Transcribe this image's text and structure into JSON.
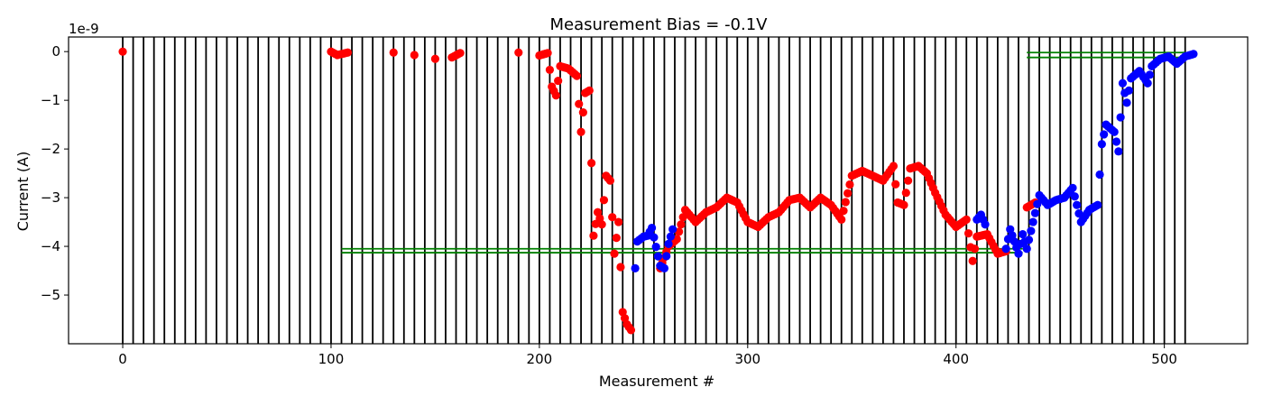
{
  "chart_data": {
    "type": "scatter",
    "title": "Measurement Bias = -0.1V",
    "xlabel": "Measurement #",
    "ylabel": "Current (A)",
    "y_offset_text": "1e-9",
    "y_scale": 1e-09,
    "xlim": [
      -26,
      540
    ],
    "ylim": [
      -6.0,
      0.3
    ],
    "xticks": [
      0,
      100,
      200,
      300,
      400,
      500
    ],
    "yticks": [
      0,
      -1,
      -2,
      -3,
      -4,
      -5
    ],
    "ytick_labels": [
      "0",
      "−1",
      "−2",
      "−3",
      "−4",
      "−5"
    ],
    "grid": false,
    "colors": {
      "red": "#ff0000",
      "blue": "#0000ff",
      "green": "#008000",
      "lines": "#000000"
    },
    "vertical_lines": {
      "start": 0,
      "step": 5,
      "count": 103,
      "y_top": 0.3,
      "y_bottom": -6.0
    },
    "horizontal_segments": [
      {
        "x": [
          105,
          432
        ],
        "y": -4.05
      },
      {
        "x": [
          105,
          432
        ],
        "y": -4.13
      },
      {
        "x": [
          434,
          510
        ],
        "y": -0.02
      },
      {
        "x": [
          434,
          510
        ],
        "y": -0.12
      }
    ],
    "series": [
      {
        "color": "red",
        "anchors": [
          [
            0,
            0
          ],
          [
            100,
            0
          ],
          [
            103,
            -0.07
          ],
          [
            108,
            -0.02
          ],
          [
            130,
            -0.02
          ],
          [
            140,
            -0.07
          ],
          [
            150,
            -0.15
          ],
          [
            158,
            -0.12
          ],
          [
            162,
            -0.03
          ],
          [
            190,
            -0.02
          ],
          [
            200,
            -0.08
          ],
          [
            204,
            -0.03
          ],
          [
            206,
            -0.72
          ],
          [
            208,
            -0.9
          ],
          [
            210,
            -0.3
          ],
          [
            214,
            -0.35
          ],
          [
            218,
            -0.5
          ],
          [
            220,
            -1.65
          ],
          [
            222,
            -0.85
          ],
          [
            224,
            -0.8
          ],
          [
            226,
            -3.78
          ],
          [
            228,
            -3.3
          ],
          [
            230,
            -3.55
          ],
          [
            232,
            -2.55
          ],
          [
            234,
            -2.65
          ],
          [
            236,
            -4.15
          ],
          [
            238,
            -3.5
          ],
          [
            240,
            -5.35
          ],
          [
            242,
            -5.6
          ],
          [
            244,
            -5.72
          ],
          [
            258,
            -4.45
          ],
          [
            262,
            -4.0
          ],
          [
            266,
            -3.85
          ],
          [
            270,
            -3.25
          ],
          [
            275,
            -3.5
          ],
          [
            280,
            -3.3
          ],
          [
            285,
            -3.2
          ],
          [
            290,
            -3.0
          ],
          [
            295,
            -3.1
          ],
          [
            300,
            -3.5
          ],
          [
            305,
            -3.6
          ],
          [
            310,
            -3.4
          ],
          [
            315,
            -3.3
          ],
          [
            320,
            -3.05
          ],
          [
            325,
            -3.0
          ],
          [
            330,
            -3.2
          ],
          [
            335,
            -3.0
          ],
          [
            340,
            -3.15
          ],
          [
            345,
            -3.45
          ],
          [
            350,
            -2.55
          ],
          [
            355,
            -2.45
          ],
          [
            360,
            -2.55
          ],
          [
            365,
            -2.65
          ],
          [
            370,
            -2.35
          ],
          [
            372,
            -3.1
          ],
          [
            375,
            -3.15
          ],
          [
            378,
            -2.4
          ],
          [
            382,
            -2.35
          ],
          [
            386,
            -2.5
          ],
          [
            390,
            -2.9
          ],
          [
            395,
            -3.35
          ],
          [
            400,
            -3.6
          ],
          [
            405,
            -3.45
          ],
          [
            408,
            -4.3
          ],
          [
            410,
            -3.8
          ],
          [
            415,
            -3.75
          ],
          [
            420,
            -4.15
          ],
          [
            424,
            -4.1
          ],
          [
            434,
            -3.2
          ],
          [
            438,
            -3.1
          ]
        ],
        "density": 1.0
      },
      {
        "color": "blue",
        "anchors": [
          [
            246,
            -4.45
          ],
          [
            247,
            -3.9
          ],
          [
            250,
            -3.8
          ],
          [
            252,
            -3.78
          ],
          [
            254,
            -3.62
          ],
          [
            258,
            -4.4
          ],
          [
            260,
            -4.45
          ],
          [
            262,
            -3.95
          ],
          [
            264,
            -3.65
          ],
          [
            410,
            -3.45
          ],
          [
            412,
            -3.35
          ],
          [
            414,
            -3.55
          ],
          [
            424,
            -4.05
          ],
          [
            426,
            -3.65
          ],
          [
            428,
            -3.9
          ],
          [
            430,
            -4.15
          ],
          [
            432,
            -3.75
          ],
          [
            434,
            -4.05
          ],
          [
            440,
            -2.95
          ],
          [
            444,
            -3.15
          ],
          [
            448,
            -3.05
          ],
          [
            452,
            -3.0
          ],
          [
            456,
            -2.8
          ],
          [
            460,
            -3.5
          ],
          [
            464,
            -3.25
          ],
          [
            468,
            -3.15
          ],
          [
            470,
            -1.9
          ],
          [
            472,
            -1.5
          ],
          [
            476,
            -1.65
          ],
          [
            478,
            -2.05
          ],
          [
            480,
            -0.65
          ],
          [
            482,
            -1.05
          ],
          [
            484,
            -0.55
          ],
          [
            488,
            -0.4
          ],
          [
            492,
            -0.65
          ],
          [
            494,
            -0.3
          ],
          [
            498,
            -0.15
          ],
          [
            502,
            -0.1
          ],
          [
            506,
            -0.25
          ],
          [
            510,
            -0.1
          ],
          [
            514,
            -0.05
          ]
        ],
        "density": 1.0
      }
    ]
  }
}
